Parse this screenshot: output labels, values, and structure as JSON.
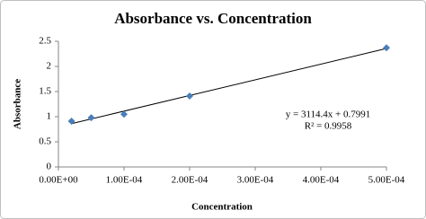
{
  "chart_data": {
    "type": "scatter",
    "title": "Absorbance vs. Concentration",
    "x_label": "Concentration",
    "y_label": "Absorbance",
    "series": [
      {
        "name": "Absorbance",
        "color": "#4a7ebb",
        "x": [
          2e-05,
          5e-05,
          0.0001,
          0.0002,
          0.0005
        ],
        "values": [
          0.91,
          0.98,
          1.05,
          1.41,
          2.37
        ]
      }
    ],
    "trendline": {
      "slope": 3114.4,
      "intercept": 0.7991,
      "equation_label": "y = 3114.4x + 0.7991",
      "r2_label": "R² = 0.9958",
      "color": "#000000"
    },
    "xlim": [
      0,
      0.0005
    ],
    "xticks": [
      {
        "value": 0,
        "label": "0.00E+00"
      },
      {
        "value": 0.0001,
        "label": "1.00E-04"
      },
      {
        "value": 0.0002,
        "label": "2.00E-04"
      },
      {
        "value": 0.0003,
        "label": "3.00E-04"
      },
      {
        "value": 0.0004,
        "label": "4.00E-04"
      },
      {
        "value": 0.0005,
        "label": "5.00E-04"
      }
    ],
    "ylim": [
      0,
      2.5
    ],
    "yticks": [
      0,
      0.5,
      1,
      1.5,
      2,
      2.5
    ],
    "grid": false
  }
}
